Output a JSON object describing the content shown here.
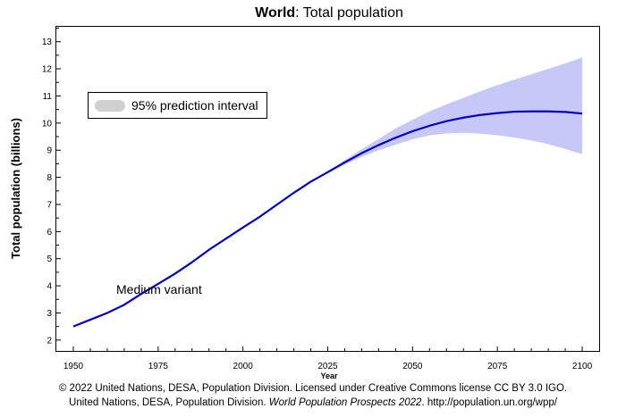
{
  "chart_data": {
    "type": "line",
    "title_bold": "World",
    "title_rest": ": Total population",
    "xlabel": "Year",
    "ylabel": "Total population (billions)",
    "xlim": [
      1945,
      2105
    ],
    "ylim": [
      1.6,
      13.55
    ],
    "x_ticks": [
      1950,
      1975,
      2000,
      2025,
      2050,
      2075,
      2100
    ],
    "y_ticks": [
      2,
      3,
      4,
      5,
      6,
      7,
      8,
      9,
      10,
      11,
      12,
      13
    ],
    "x_minor_step": 5,
    "y_minor_step": 0.5,
    "legend": {
      "label": "95% prediction interval",
      "placement": "top-left"
    },
    "annotation": "Medium variant",
    "colors": {
      "line": "#0000cc",
      "band": "#c8c8f8",
      "legend_swatch": "#d0d0d0"
    },
    "series": [
      {
        "name": "Medium variant",
        "x": [
          1950,
          1955,
          1960,
          1965,
          1970,
          1975,
          1980,
          1985,
          1990,
          1995,
          2000,
          2005,
          2010,
          2015,
          2020,
          2025,
          2030,
          2035,
          2040,
          2045,
          2050,
          2055,
          2060,
          2065,
          2070,
          2075,
          2080,
          2085,
          2090,
          2095,
          2100
        ],
        "y": [
          2.5,
          2.75,
          3.0,
          3.3,
          3.7,
          4.07,
          4.45,
          4.87,
          5.33,
          5.74,
          6.15,
          6.55,
          6.99,
          7.43,
          7.84,
          8.19,
          8.55,
          8.89,
          9.19,
          9.46,
          9.7,
          9.9,
          10.07,
          10.2,
          10.3,
          10.37,
          10.42,
          10.43,
          10.43,
          10.41,
          10.35
        ]
      }
    ],
    "interval": {
      "name": "95% prediction interval",
      "x": [
        2022,
        2025,
        2030,
        2035,
        2040,
        2045,
        2050,
        2055,
        2060,
        2065,
        2070,
        2075,
        2080,
        2085,
        2090,
        2095,
        2100
      ],
      "lower": [
        7.95,
        8.15,
        8.47,
        8.75,
        9.0,
        9.2,
        9.4,
        9.55,
        9.62,
        9.64,
        9.61,
        9.55,
        9.47,
        9.36,
        9.22,
        9.05,
        8.85
      ],
      "upper": [
        7.95,
        8.22,
        8.63,
        9.04,
        9.42,
        9.8,
        10.12,
        10.43,
        10.69,
        10.93,
        11.17,
        11.4,
        11.6,
        11.8,
        12.0,
        12.2,
        12.42
      ]
    }
  },
  "footer": {
    "line1": "© 2022 United Nations, DESA, Population Division. Licensed under Creative Commons license CC BY 3.0 IGO.",
    "line2_prefix": "United Nations, DESA, Population Division. ",
    "line2_italic": "World Population Prospects 2022",
    "line2_suffix": ". http://population.un.org/wpp/"
  }
}
